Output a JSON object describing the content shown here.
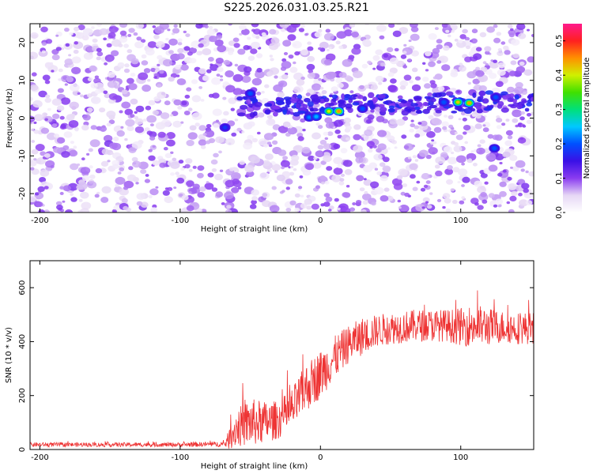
{
  "title": "S225.2026.031.03.25.R21",
  "colors": {
    "trace": "#ee3333",
    "frame": "#000000"
  },
  "chart_data": [
    {
      "type": "heatmap",
      "xlabel": "Height of straight line (km)",
      "ylabel": "Frequency (Hz)",
      "xlim": [
        -207,
        152
      ],
      "ylim": [
        -25,
        25
      ],
      "xticks": [
        -200,
        -100,
        0,
        100
      ],
      "yticks": [
        -20,
        -10,
        0,
        10,
        20
      ],
      "colorbar": {
        "label": "Normalized spectral amplitude",
        "range": [
          0,
          0.55
        ],
        "ticks": [
          "0.0",
          "0.1",
          "0.2",
          "0.3",
          "0.4",
          "0.5"
        ],
        "tick_values": [
          0,
          0.1,
          0.2,
          0.3,
          0.4,
          0.5
        ],
        "stops": [
          "#ffffff",
          "#e6d7f5",
          "#8a3cf0",
          "#3a10e6",
          "#0050ff",
          "#00c8ff",
          "#00e07a",
          "#40e000",
          "#d0f000",
          "#ff9000",
          "#ff2020",
          "#ff1a8c"
        ]
      },
      "ridge": {
        "freq": 3,
        "from_km": -60,
        "to_km": 152
      },
      "hotspots": [
        {
          "x": -68,
          "y": -2.5,
          "v": 0.18
        },
        {
          "x": -50,
          "y": 6.5,
          "v": 0.2
        },
        {
          "x": -8,
          "y": 0.2,
          "v": 0.22
        },
        {
          "x": -3,
          "y": 0.4,
          "v": 0.24
        },
        {
          "x": 6,
          "y": 1.8,
          "v": 0.4
        },
        {
          "x": 13,
          "y": 1.8,
          "v": 0.45
        },
        {
          "x": 30,
          "y": 2.5,
          "v": 0.2
        },
        {
          "x": 88,
          "y": 4.2,
          "v": 0.2
        },
        {
          "x": 98,
          "y": 4.2,
          "v": 0.42
        },
        {
          "x": 106,
          "y": 4,
          "v": 0.44
        },
        {
          "x": 125,
          "y": 5.5,
          "v": 0.2
        },
        {
          "x": 124,
          "y": -8,
          "v": 0.2
        }
      ]
    },
    {
      "type": "line",
      "xlabel": "Height of straight line (km)",
      "ylabel": "SNR (10 * v/v)",
      "xlim": [
        -207,
        152
      ],
      "ylim": [
        0,
        700
      ],
      "xticks": [
        -200,
        -100,
        0,
        100
      ],
      "yticks": [
        0,
        200,
        400,
        600
      ],
      "series": [
        {
          "name": "SNR",
          "x": [
            -207,
            -150,
            -100,
            -68,
            -65,
            -60,
            -50,
            -40,
            -30,
            -20,
            -10,
            0,
            10,
            20,
            30,
            40,
            50,
            60,
            70,
            80,
            90,
            100,
            110,
            120,
            130,
            140,
            152
          ],
          "mean": [
            18,
            18,
            18,
            20,
            40,
            80,
            100,
            100,
            110,
            150,
            230,
            280,
            340,
            390,
            420,
            440,
            450,
            455,
            460,
            460,
            460,
            455,
            460,
            455,
            455,
            450,
            450
          ],
          "noise": [
            8,
            8,
            8,
            10,
            40,
            70,
            90,
            80,
            70,
            80,
            90,
            90,
            80,
            70,
            70,
            60,
            60,
            60,
            60,
            60,
            60,
            70,
            80,
            70,
            60,
            60,
            60
          ]
        }
      ]
    }
  ]
}
